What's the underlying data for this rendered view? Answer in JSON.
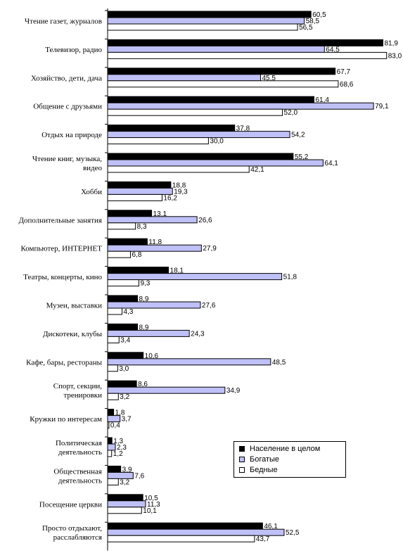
{
  "chart_data": {
    "type": "bar",
    "orientation": "horizontal",
    "categories": [
      [
        "Чтение газет, журналов"
      ],
      [
        "Телевизор, радио"
      ],
      [
        "Хозяйство, дети, дача"
      ],
      [
        "Общение с друзьями"
      ],
      [
        "Отдых на природе"
      ],
      [
        "Чтение книг, музыка,",
        "видео"
      ],
      [
        "Хобби"
      ],
      [
        "Дополнительные занятия"
      ],
      [
        "Компьютер, ИНТЕРНЕТ"
      ],
      [
        "Театры, концерты, кино"
      ],
      [
        "Музеи, выставки"
      ],
      [
        "Дискотеки, клубы"
      ],
      [
        "Кафе, бары, рестораны"
      ],
      [
        "Спорт, секции,",
        "тренировки"
      ],
      [
        "Кружки по интересам"
      ],
      [
        "Политическая",
        "деятельность"
      ],
      [
        "Общественная",
        "деятельность"
      ],
      [
        "Посещение церкви"
      ],
      [
        "Просто отдыхают,",
        "расслабляются"
      ]
    ],
    "series": [
      {
        "name": "Население в целом",
        "color": "#000000",
        "values": [
          60.5,
          81.9,
          67.7,
          61.4,
          37.8,
          55.2,
          18.8,
          13.1,
          11.8,
          18.1,
          8.9,
          8.9,
          10.6,
          8.6,
          1.8,
          1.3,
          3.9,
          10.5,
          46.1
        ],
        "labels": [
          "60,5",
          "81,9",
          "67,7",
          "61,4",
          "37,8",
          "55,2",
          "18,8",
          "13,1",
          "11,8",
          "18,1",
          "8,9",
          "8,9",
          "10,6",
          "8,6",
          "1,8",
          "1,3",
          "3,9",
          "10,5",
          "46,1"
        ]
      },
      {
        "name": "Богатые",
        "color": "#c0c0f8",
        "values": [
          58.5,
          64.5,
          45.5,
          79.1,
          54.2,
          64.1,
          19.3,
          26.6,
          27.9,
          51.8,
          27.6,
          24.3,
          48.5,
          34.9,
          3.7,
          2.3,
          7.6,
          11.3,
          52.5
        ],
        "labels": [
          "58,5",
          "64,5",
          "45,5",
          "79,1",
          "54,2",
          "64,1",
          "19,3",
          "26,6",
          "27,9",
          "51,8",
          "27,6",
          "24,3",
          "48,5",
          "34,9",
          "3,7",
          "2,3",
          "7,6",
          "11,3",
          "52,5"
        ]
      },
      {
        "name": "Бедные",
        "color": "#ffffff",
        "values": [
          56.5,
          83.0,
          68.6,
          52.0,
          30.0,
          42.1,
          16.2,
          8.3,
          6.8,
          9.3,
          4.3,
          3.4,
          3.0,
          3.2,
          0.4,
          1.2,
          3.2,
          10.1,
          43.7
        ],
        "labels": [
          "56,5",
          "83,0",
          "68,6",
          "52,0",
          "30,0",
          "42,1",
          "16,2",
          "8,3",
          "6,8",
          "9,3",
          "4,3",
          "3,4",
          "3,0",
          "3,2",
          "0,4",
          "1,2",
          "3,2",
          "10,1",
          "43,7"
        ]
      }
    ],
    "xlim": [
      0,
      100
    ],
    "grid": false,
    "legend_position": "bottom-right"
  }
}
